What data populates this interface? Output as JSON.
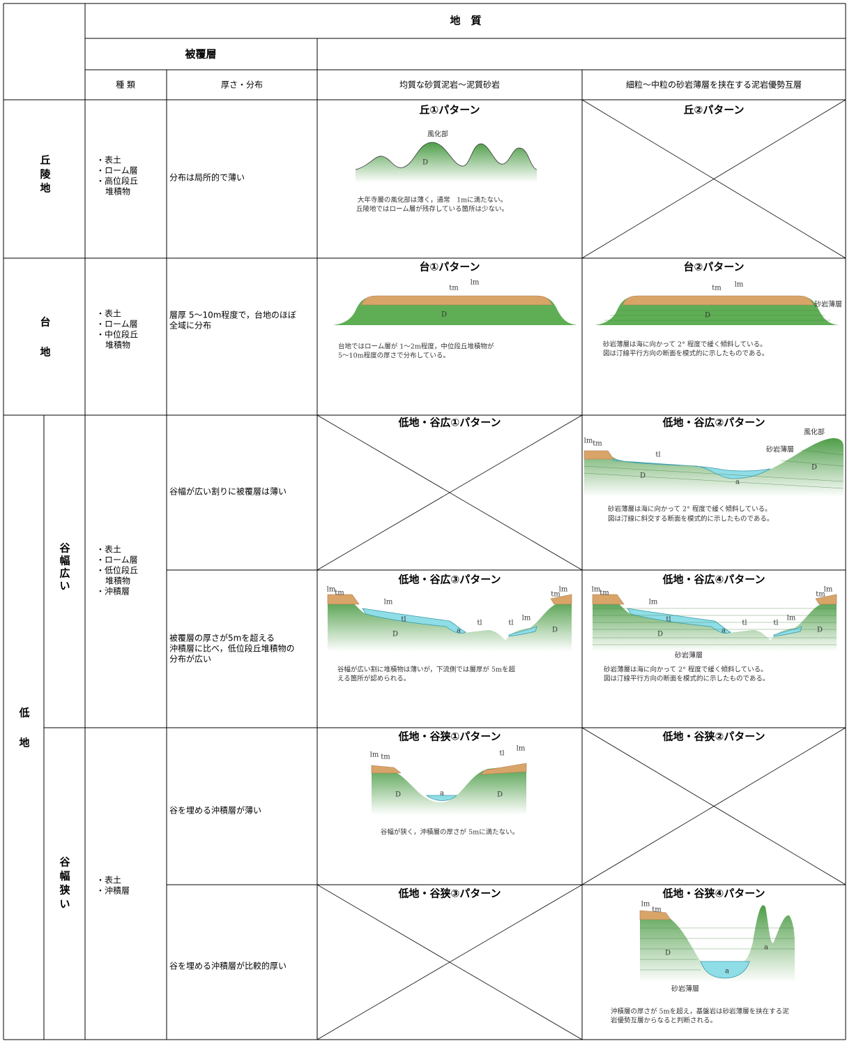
{
  "header": {
    "title": "地　質",
    "cover_layer": "被覆層",
    "columns": [
      "種 類",
      "厚さ・分布",
      "均質な砂質泥岩～泥質砂岩",
      "細粒～中粒の砂岩薄層を挟在する泥岩優勢互層"
    ]
  },
  "hills": {
    "label": [
      "丘",
      "陵",
      "地"
    ],
    "types": [
      "・表土",
      "・ローム層",
      "・高位段丘",
      "堆積物"
    ],
    "distribution": [
      "分布は局所的で薄い"
    ],
    "pattern_1": {
      "title": "丘①パターン",
      "labels": [
        "風化部",
        "D"
      ],
      "caption": [
        "大年寺層の風化部は薄く，通常　1mに満たない。",
        "丘陵地ではローム層が残存している箇所は少ない。"
      ]
    },
    "pattern_2": {
      "title": "丘②パターン"
    }
  },
  "plateau": {
    "label": [
      "台",
      "地"
    ],
    "types": [
      "・表土",
      "・ローム層",
      "・中位段丘",
      "堆積物"
    ],
    "distribution": [
      "層厚 5～10m程度で，台地のほぼ",
      "全域に分布"
    ],
    "pattern_1": {
      "title": "台①パターン",
      "labels": [
        "tm",
        "lm",
        "D"
      ],
      "caption": [
        "台地ではローム層が 1～2m程度，中位段丘堆積物が",
        "5～10m程度の厚さで分布している。"
      ]
    },
    "pattern_2": {
      "title": "台②パターン",
      "labels": [
        "tm",
        "lm",
        "砂岩薄層",
        "D"
      ],
      "caption": [
        "砂岩薄層は海に向かって 2° 程度で緩く傾斜している。",
        "図は汀線平行方向の断面を模式的に示したものである。"
      ]
    }
  },
  "lowland": {
    "label": [
      "低",
      "地"
    ],
    "wide": {
      "label": [
        "谷",
        "幅",
        "広",
        "い"
      ],
      "types": [
        "・表土",
        "・ローム層",
        "・低位段丘",
        "堆積物",
        "・沖積層"
      ],
      "rows": [
        {
          "distribution": [
            "谷幅が広い割りに被覆層は薄い"
          ],
          "pattern_1": {
            "title": "低地・谷広①パターン"
          },
          "pattern_2": {
            "title": "低地・谷広②パターン",
            "labels": [
              "lm",
              "tm",
              "風化部",
              "砂岩薄層",
              "tl",
              "a",
              "D",
              "D"
            ],
            "caption": [
              "砂岩薄層は海に向かって 2° 程度で緩く傾斜している。",
              "図は汀線に斜交する断面を模式的に示したものである。"
            ]
          }
        },
        {
          "distribution": [
            "被覆層の厚さが5mを超える",
            "沖積層に比べ，低位段丘堆積物の",
            "分布が広い"
          ],
          "pattern_1": {
            "title": "低地・谷広③パターン",
            "labels": [
              "lm",
              "tm",
              "lm",
              "tl",
              "a",
              "tl",
              "tl",
              "lm",
              "lm",
              "tm",
              "D",
              "D"
            ],
            "caption": [
              "谷幅が広い割に堆積物は薄いが，下流側では層厚が 5mを超",
              "える箇所が認められる。"
            ]
          },
          "pattern_2": {
            "title": "低地・谷広④パターン",
            "labels": [
              "lm",
              "tm",
              "lm",
              "tl",
              "a",
              "tl",
              "tl",
              "lm",
              "lm",
              "tm",
              "D",
              "D",
              "砂岩薄層"
            ],
            "caption": [
              "砂岩薄層は海に向かって 2° 程度で緩く傾斜している。",
              "図は汀線平行方向の断面を模式的に示したものである。"
            ]
          }
        }
      ]
    },
    "narrow": {
      "label": [
        "谷",
        "幅",
        "狭",
        "い"
      ],
      "types": [
        "・表土",
        "・沖積層"
      ],
      "rows": [
        {
          "distribution": [
            "谷を埋める沖積層が薄い"
          ],
          "pattern_1": {
            "title": "低地・谷狭①パターン",
            "labels": [
              "lm",
              "tm",
              "tl",
              "lm",
              "a",
              "D",
              "D"
            ],
            "caption": [
              "谷幅が狭く，沖積層の厚さが 5mに満たない。"
            ]
          },
          "pattern_2": {
            "title": "低地・谷狭②パターン"
          }
        },
        {
          "distribution": [
            "谷を埋める沖積層が比較的厚い"
          ],
          "pattern_1": {
            "title": "低地・谷狭③パターン"
          },
          "pattern_2": {
            "title": "低地・谷狭④パターン",
            "labels": [
              "lm",
              "tm",
              "D",
              "a",
              "a",
              "砂岩薄層"
            ],
            "caption": [
              "沖積層の厚さが 5mを超え，基盤岩は砂岩薄層を挟在する泥",
              "岩優勢互層からなると判断される。"
            ]
          }
        }
      ]
    }
  }
}
